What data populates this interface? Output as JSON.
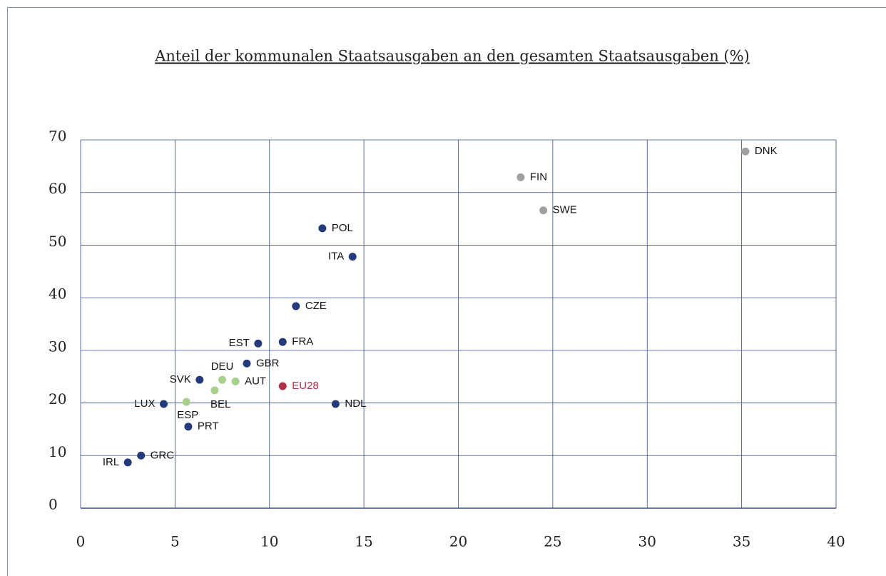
{
  "chart_data": {
    "type": "scatter",
    "title": "Anteil der kommunalen Staatsausgaben an den gesamten Staatsausgaben (%)",
    "labels": [
      "DNK",
      "FIN",
      "SWE",
      "POL",
      "ITA",
      "CZE",
      "EST",
      "FRA",
      "GBR",
      "SVK",
      "DEU",
      "AUT",
      "BEL",
      "EU28",
      "ESP",
      "LUX",
      "NDL",
      "PRT",
      "GRC",
      "IRL"
    ],
    "x": [
      35.2,
      23.3,
      24.5,
      12.8,
      14.4,
      11.4,
      9.4,
      10.7,
      8.8,
      6.3,
      7.5,
      8.2,
      7.1,
      10.7,
      5.6,
      4.4,
      13.5,
      5.7,
      3.2,
      2.5
    ],
    "values": [
      67.8,
      62.9,
      56.6,
      53.2,
      47.8,
      38.4,
      31.3,
      31.6,
      27.5,
      24.4,
      24.4,
      24.1,
      22.4,
      23.2,
      20.2,
      19.8,
      19.8,
      15.5,
      10.0,
      8.7
    ],
    "colors": [
      "#a0a0a0",
      "#a0a0a0",
      "#a0a0a0",
      "#243a7a",
      "#243a7a",
      "#243a7a",
      "#243a7a",
      "#243a7a",
      "#243a7a",
      "#243a7a",
      "#a8d08d",
      "#a8d08d",
      "#a8d08d",
      "#b03048",
      "#a8d08d",
      "#243a7a",
      "#243a7a",
      "#243a7a",
      "#243a7a",
      "#243a7a"
    ],
    "label_colors": [
      "#111",
      "#111",
      "#111",
      "#111",
      "#111",
      "#111",
      "#111",
      "#111",
      "#111",
      "#111",
      "#111",
      "#111",
      "#111",
      "#b03048",
      "#111",
      "#111",
      "#111",
      "#111",
      "#111",
      "#111"
    ],
    "xlim": [
      0,
      40
    ],
    "xticks": [
      0,
      5,
      10,
      15,
      20,
      25,
      30,
      35,
      40
    ],
    "ylim": [
      0,
      70
    ],
    "yticks": [
      0,
      10,
      20,
      30,
      40,
      50,
      60,
      70
    ],
    "grid": true,
    "grid_color": "#3a4a8a"
  }
}
